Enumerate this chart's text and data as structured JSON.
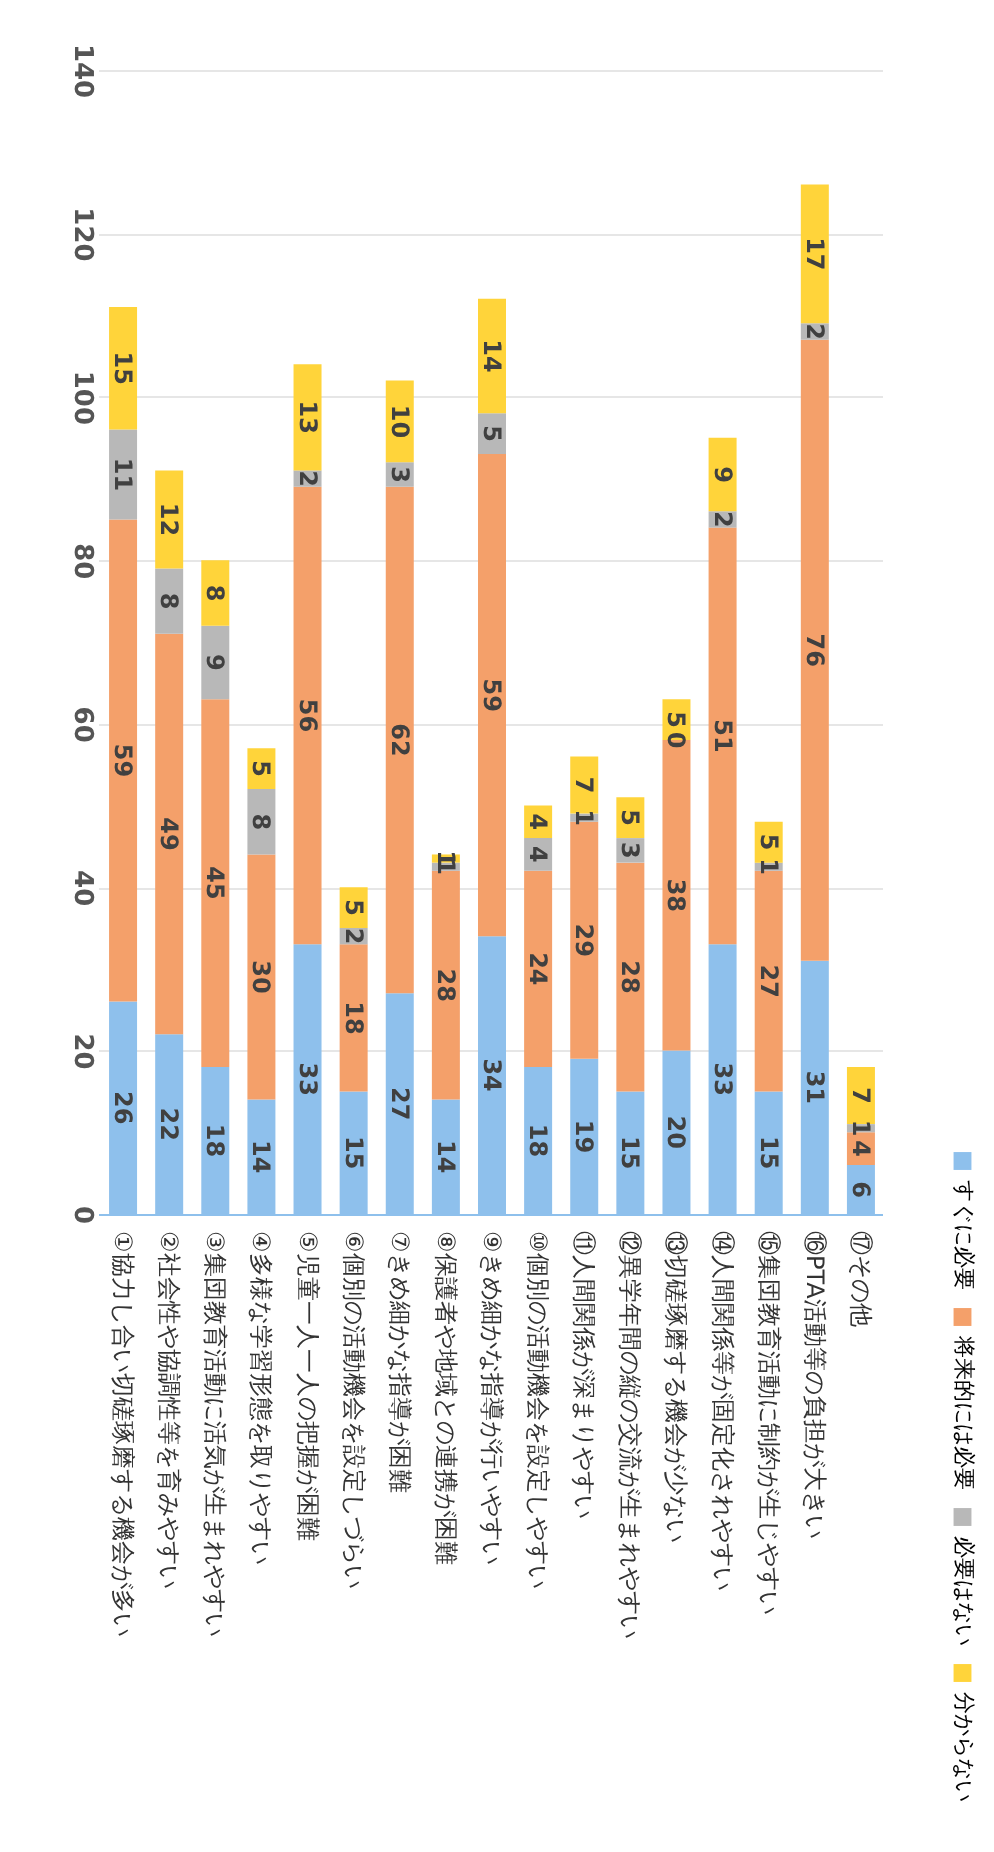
{
  "chart_data": {
    "type": "bar",
    "stacked": true,
    "categories": [
      "①協力し合い切磋琢磨する機会が多い",
      "②社会性や協調性等を育みやすい",
      "③集団教育活動に活気が生まれやすい",
      "④多様な学習形態を取りやすい",
      "⑤児童一人一人の把握が困難",
      "⑥個別の活動機会を設定しづらい",
      "⑦きめ細かな指導が困難",
      "⑧保護者や地域との連携が困難",
      "⑨きめ細かな指導が行いやすい",
      "⑩個別の活動機会を設定しやすい",
      "⑪人間関係が深まりやすい",
      "⑫異学年間の縦の交流が生まれやすい",
      "⑬切磋琢磨する機会が少ない",
      "⑭人間関係等が固定化されやすい",
      "⑮集団教育活動に制約が生じやすい",
      "⑯PTA活動等の負担が大きい",
      "⑰その他"
    ],
    "series": [
      {
        "name": "すぐに必要",
        "color": "#8ec0ec",
        "values": [
          26,
          22,
          18,
          14,
          33,
          15,
          27,
          14,
          34,
          18,
          19,
          15,
          20,
          33,
          15,
          31,
          6
        ]
      },
      {
        "name": "将来的には必要",
        "color": "#f4a06a",
        "values": [
          59,
          49,
          45,
          30,
          56,
          18,
          62,
          28,
          59,
          24,
          29,
          28,
          38,
          51,
          27,
          76,
          4
        ]
      },
      {
        "name": "必要はない",
        "color": "#b8b8b8",
        "values": [
          11,
          8,
          9,
          8,
          2,
          2,
          3,
          1,
          5,
          4,
          1,
          3,
          0,
          2,
          1,
          2,
          1
        ]
      },
      {
        "name": "分からない",
        "color": "#ffd43a",
        "values": [
          15,
          12,
          8,
          5,
          13,
          5,
          10,
          1,
          14,
          4,
          7,
          5,
          5,
          9,
          5,
          17,
          7
        ]
      }
    ],
    "ylim": [
      0,
      140
    ],
    "yticks": [
      0,
      20,
      40,
      60,
      80,
      100,
      120,
      140
    ],
    "grid": "y",
    "legend": "right",
    "data_labels": true
  }
}
